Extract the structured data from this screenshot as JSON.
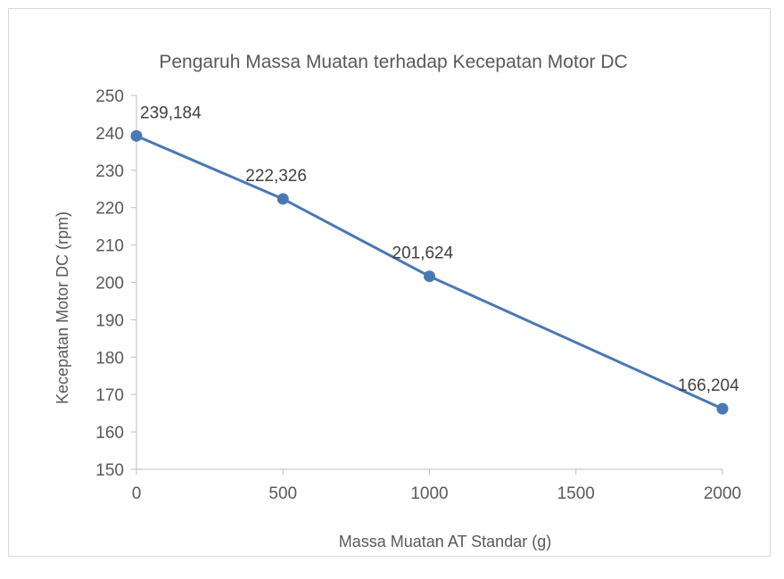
{
  "chart_data": {
    "type": "line",
    "title": "Pengaruh Massa Muatan terhadap Kecepatan Motor DC",
    "xlabel": "Massa Muatan AT Standar (g)",
    "ylabel": "Kecepatan Motor DC (rpm)",
    "x": [
      0,
      500,
      1000,
      2000
    ],
    "series": [
      {
        "values": [
          239.184,
          222.326,
          201.624,
          166.204
        ],
        "labels": [
          "239,184",
          "222,326",
          "201,624",
          "166,204"
        ]
      }
    ],
    "xlim": [
      0,
      2000
    ],
    "ylim": [
      150,
      250
    ],
    "xticks": [
      0,
      500,
      1000,
      1500,
      2000
    ],
    "xtick_labels": [
      "0",
      "500",
      "1000",
      "1500",
      "2000"
    ],
    "yticks": [
      150,
      160,
      170,
      180,
      190,
      200,
      210,
      220,
      230,
      240,
      250
    ],
    "ytick_labels": [
      "150",
      "160",
      "170",
      "180",
      "190",
      "200",
      "210",
      "220",
      "230",
      "240",
      "250"
    ],
    "grid": false,
    "legend": "none",
    "colors": {
      "series": "#4a78b4",
      "axis": "#bfbfbf",
      "text": "#595959"
    }
  }
}
